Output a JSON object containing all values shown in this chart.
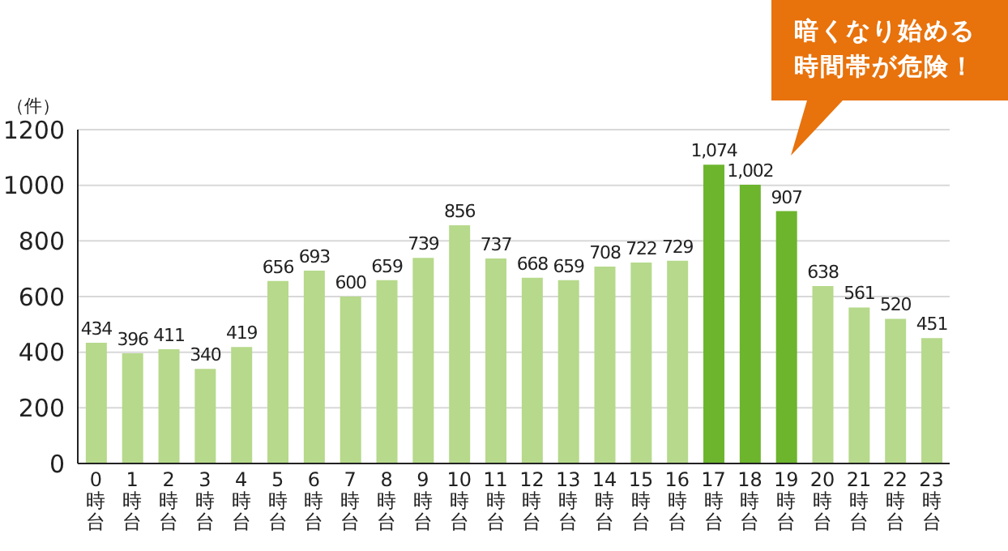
{
  "chart_data": {
    "type": "bar",
    "ylabel": "（件）",
    "categories": [
      "0時台",
      "1時台",
      "2時台",
      "3時台",
      "4時台",
      "5時台",
      "6時台",
      "7時台",
      "8時台",
      "9時台",
      "10時台",
      "11時台",
      "12時台",
      "13時台",
      "14時台",
      "15時台",
      "16時台",
      "17時台",
      "18時台",
      "19時台",
      "20時台",
      "21時台",
      "22時台",
      "23時台"
    ],
    "values": [
      434,
      396,
      411,
      340,
      419,
      656,
      693,
      600,
      659,
      739,
      856,
      737,
      668,
      659,
      708,
      722,
      729,
      1074,
      1002,
      907,
      638,
      561,
      520,
      451
    ],
    "value_labels": [
      "434",
      "396",
      "411",
      "340",
      "419",
      "656",
      "693",
      "600",
      "659",
      "739",
      "856",
      "737",
      "668",
      "659",
      "708",
      "722",
      "729",
      "1,074",
      "1,002",
      "907",
      "638",
      "561",
      "520",
      "451"
    ],
    "colors": [
      "#b6d98b",
      "#b6d98b",
      "#b6d98b",
      "#b6d98b",
      "#b6d98b",
      "#b6d98b",
      "#b6d98b",
      "#b6d98b",
      "#b6d98b",
      "#b6d98b",
      "#b6d98b",
      "#b6d98b",
      "#b6d98b",
      "#b6d98b",
      "#b6d98b",
      "#b6d98b",
      "#b6d98b",
      "#6cb52d",
      "#6cb52d",
      "#6cb52d",
      "#b6d98b",
      "#b6d98b",
      "#b6d98b",
      "#b6d98b"
    ],
    "ylim": [
      0,
      1200
    ],
    "yticks": [
      0,
      200,
      400,
      600,
      800,
      1000,
      1200
    ],
    "grid": "y",
    "legend": false,
    "annotations": [
      "暗くなり始める時間帯が危険！"
    ]
  }
}
